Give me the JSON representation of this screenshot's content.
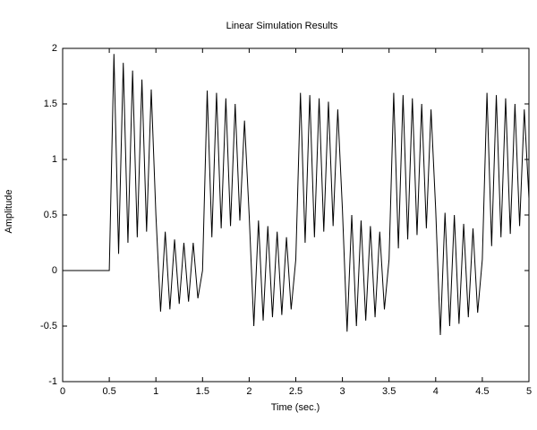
{
  "chart_data": {
    "type": "line",
    "title": "Linear Simulation Results",
    "x_label": "Time (sec.)",
    "y_label": "Amplitude",
    "color": "#000000",
    "x": [
      0,
      0.5,
      0.55,
      0.6,
      0.65,
      0.7,
      0.75,
      0.8,
      0.85,
      0.9,
      0.95,
      1,
      1.05,
      1.1,
      1.15,
      1.2,
      1.25,
      1.3,
      1.35,
      1.4,
      1.45,
      1.5,
      1.55,
      1.6,
      1.65,
      1.7,
      1.75,
      1.8,
      1.85,
      1.9,
      1.95,
      2,
      2.05,
      2.1,
      2.15,
      2.2,
      2.25,
      2.3,
      2.35,
      2.4,
      2.45,
      2.5,
      2.55,
      2.6,
      2.65,
      2.7,
      2.75,
      2.8,
      2.85,
      2.9,
      2.95,
      3,
      3.05,
      3.1,
      3.15,
      3.2,
      3.25,
      3.3,
      3.35,
      3.4,
      3.45,
      3.5,
      3.55,
      3.6,
      3.65,
      3.7,
      3.75,
      3.8,
      3.85,
      3.9,
      3.95,
      4,
      4.05,
      4.1,
      4.15,
      4.2,
      4.25,
      4.3,
      4.35,
      4.4,
      4.45,
      4.5,
      4.55,
      4.6,
      4.65,
      4.7,
      4.75,
      4.8,
      4.85,
      4.9,
      4.95,
      5
    ],
    "values": [
      0,
      0,
      1.95,
      0.15,
      1.87,
      0.25,
      1.8,
      0.3,
      1.72,
      0.35,
      1.63,
      0.5,
      -0.37,
      0.35,
      -0.35,
      0.28,
      -0.3,
      0.25,
      -0.28,
      0.25,
      -0.25,
      0,
      1.62,
      0.3,
      1.6,
      0.38,
      1.55,
      0.4,
      1.5,
      0.45,
      1.35,
      0.5,
      -0.5,
      0.45,
      -0.45,
      0.4,
      -0.42,
      0.35,
      -0.4,
      0.3,
      -0.35,
      0.1,
      1.6,
      0.25,
      1.58,
      0.3,
      1.55,
      0.35,
      1.52,
      0.4,
      1.45,
      0.55,
      -0.55,
      0.5,
      -0.5,
      0.45,
      -0.45,
      0.4,
      -0.42,
      0.35,
      -0.35,
      0.1,
      1.6,
      0.2,
      1.58,
      0.28,
      1.55,
      0.32,
      1.5,
      0.38,
      1.45,
      0.55,
      -0.58,
      0.52,
      -0.5,
      0.5,
      -0.48,
      0.42,
      -0.42,
      0.38,
      -0.38,
      0.1,
      1.6,
      0.22,
      1.58,
      0.3,
      1.55,
      0.33,
      1.5,
      0.4,
      1.45,
      0.65
    ],
    "xlim": [
      0,
      5
    ],
    "xticks": [
      0,
      0.5,
      1,
      1.5,
      2,
      2.5,
      3,
      3.5,
      4,
      4.5,
      5
    ],
    "ylim": [
      -1,
      2
    ],
    "yticks": [
      -1,
      -0.5,
      0,
      0.5,
      1,
      1.5,
      2
    ],
    "grid": false
  }
}
